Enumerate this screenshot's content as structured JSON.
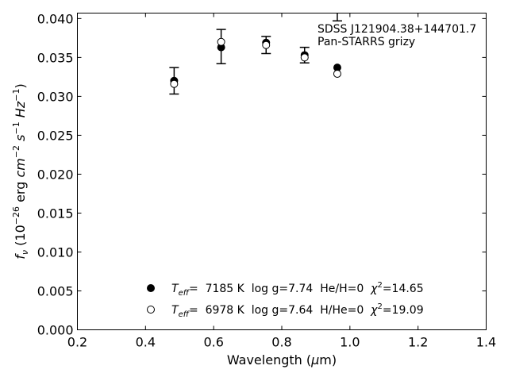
{
  "chart_data": {
    "type": "scatter",
    "xlabel": "Wavelength (μm)",
    "ylabel": "fν (10⁻²⁶ erg cm⁻² s⁻¹ Hz⁻¹)",
    "xlim": [
      0.2,
      1.4
    ],
    "ylim": [
      0.0,
      0.0407
    ],
    "x_ticks": [
      "0.2",
      "0.4",
      "0.6",
      "0.8",
      "1.0",
      "1.2",
      "1.4"
    ],
    "y_ticks": [
      "0.000",
      "0.005",
      "0.010",
      "0.015",
      "0.020",
      "0.025",
      "0.030",
      "0.035",
      "0.040"
    ],
    "grid": false,
    "annotations": [
      "SDSS J121904.38+144701.7",
      "Pan-STARRS grizy"
    ],
    "observed": {
      "x": [
        0.484,
        0.622,
        0.754,
        0.867,
        0.963
      ],
      "y": [
        0.032,
        0.0364,
        0.0366,
        0.0353,
        0.0418
      ],
      "err": [
        0.0017,
        0.0022,
        0.0011,
        0.001,
        0.0021
      ]
    },
    "series": [
      {
        "name": "Teff= 7185 K  log g=7.74  He/H=0  χ²=14.65",
        "label_parts": {
          "prefix": "T",
          "sub": "eff",
          "text": "=  7185 K  log g=7.74  He/H=0  ",
          "chi": "χ",
          "sup": "2",
          "value": "=14.65"
        },
        "marker": "filled-circle",
        "x": [
          0.484,
          0.622,
          0.754,
          0.867,
          0.963
        ],
        "y": [
          0.032,
          0.0363,
          0.0369,
          0.0353,
          0.0337
        ]
      },
      {
        "name": "Teff= 6978 K  log g=7.64  H/He=0  χ²=19.09",
        "label_parts": {
          "prefix": "T",
          "sub": "eff",
          "text": "=  6978 K  log g=7.64  H/He=0  ",
          "chi": "χ",
          "sup": "2",
          "value": "=19.09"
        },
        "marker": "open-circle",
        "x": [
          0.484,
          0.622,
          0.754,
          0.867,
          0.963
        ],
        "y": [
          0.0316,
          0.037,
          0.0366,
          0.035,
          0.0329
        ]
      }
    ]
  }
}
